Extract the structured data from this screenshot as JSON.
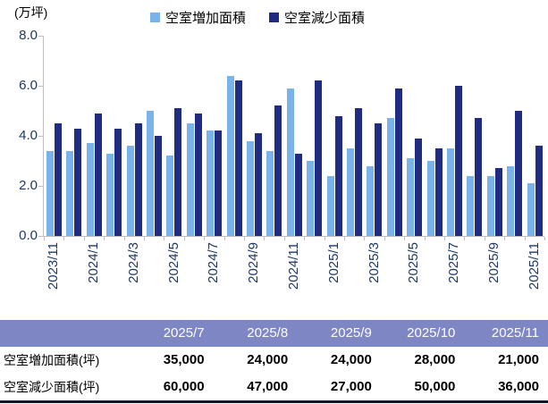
{
  "chart_data": {
    "type": "bar",
    "title": "",
    "unit_label": "(万坪)",
    "ylabel": "",
    "ylim": [
      0,
      8
    ],
    "y_ticks": [
      "8.0",
      "6.0",
      "4.0",
      "2.0",
      "0.0"
    ],
    "grid": false,
    "legend_position": "top-center",
    "categories": [
      "2023/11",
      "2023/12",
      "2024/1",
      "2024/2",
      "2024/3",
      "2024/4",
      "2024/5",
      "2024/6",
      "2024/7",
      "2024/8",
      "2024/9",
      "2024/10",
      "2024/11",
      "2024/12",
      "2025/1",
      "2025/2",
      "2025/3",
      "2025/4",
      "2025/5",
      "2025/6",
      "2025/7",
      "2025/8",
      "2025/9",
      "2025/10",
      "2025/11"
    ],
    "x_labels_shown_every": 2,
    "series": [
      {
        "name": "空室増加面積",
        "color": "#7AB3EA",
        "values": [
          3.4,
          3.4,
          3.7,
          3.3,
          3.6,
          5.0,
          3.2,
          4.5,
          4.2,
          6.4,
          3.8,
          3.4,
          5.9,
          3.0,
          2.4,
          3.5,
          2.8,
          4.7,
          3.1,
          3.0,
          3.5,
          2.4,
          2.4,
          2.8,
          2.1
        ]
      },
      {
        "name": "空室減少面積",
        "color": "#1F2C81",
        "values": [
          4.5,
          4.3,
          4.9,
          4.3,
          4.5,
          4.0,
          5.1,
          4.9,
          4.2,
          6.2,
          4.1,
          5.2,
          3.3,
          6.2,
          4.8,
          5.1,
          4.5,
          5.9,
          3.9,
          3.5,
          6.0,
          4.7,
          2.7,
          5.0,
          3.6
        ]
      }
    ]
  },
  "table": {
    "header_bg": "#7E86C4",
    "columns": [
      "",
      "2025/7",
      "2025/8",
      "2025/9",
      "2025/10",
      "2025/11"
    ],
    "rows": [
      {
        "label": "空室増加面積(坪)",
        "values": [
          "35,000",
          "24,000",
          "24,000",
          "28,000",
          "21,000"
        ]
      },
      {
        "label": "空室減少面積(坪)",
        "values": [
          "60,000",
          "47,000",
          "27,000",
          "50,000",
          "36,000"
        ]
      }
    ]
  },
  "colors": {
    "increase": "#7AB3EA",
    "decrease": "#1F2C81",
    "axis_line": "#BFBFBF",
    "axis_text": "#1F3864",
    "table_header_bg": "#7E86C4",
    "table_border": "#14142b"
  }
}
